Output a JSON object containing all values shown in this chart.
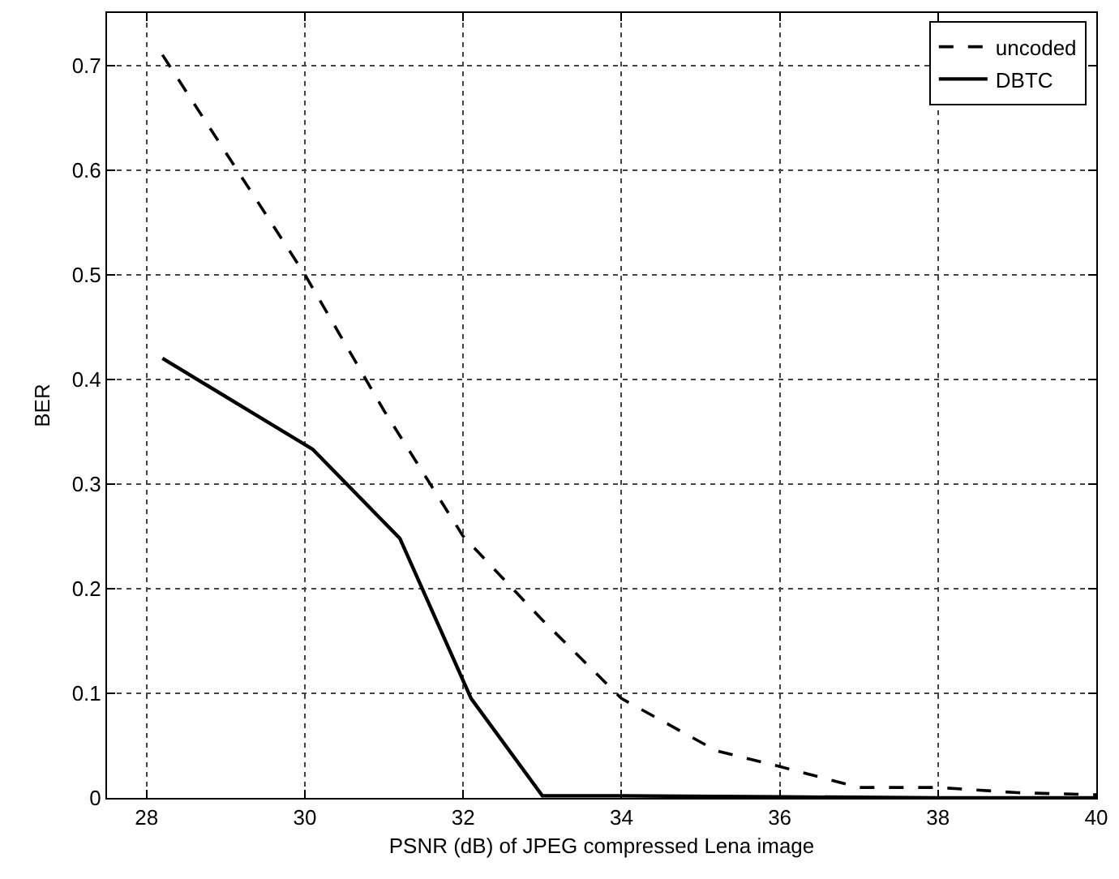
{
  "chart_data": {
    "type": "line",
    "xlabel": "PSNR (dB) of JPEG compressed Lena image",
    "ylabel": "BER",
    "xlim": [
      27.5,
      40
    ],
    "xticks": [
      28,
      30,
      32,
      34,
      36,
      38,
      40
    ],
    "ylim": [
      0,
      0.75
    ],
    "yticks": [
      0,
      0.1,
      0.2,
      0.3,
      0.4,
      0.5,
      0.6,
      0.7
    ],
    "grid": true,
    "legend": "top right",
    "marker": "none",
    "series": [
      {
        "name": "uncoded",
        "color": "#000000",
        "line_style": "dashed",
        "x": [
          28.2,
          30,
          31,
          32,
          33,
          34,
          35.2,
          36,
          37,
          38,
          39,
          40
        ],
        "values": [
          0.71,
          0.5,
          0.37,
          0.25,
          0.17,
          0.095,
          0.045,
          0.03,
          0.01,
          0.01,
          0.005,
          0.003
        ]
      },
      {
        "name": "DBTC",
        "color": "#000000",
        "line_style": "solid",
        "x": [
          28.2,
          30.1,
          31.2,
          32.1,
          33,
          34,
          36,
          38,
          40
        ],
        "values": [
          0.42,
          0.333,
          0.248,
          0.095,
          0.002,
          0.002,
          0.001,
          0,
          0
        ]
      }
    ]
  }
}
